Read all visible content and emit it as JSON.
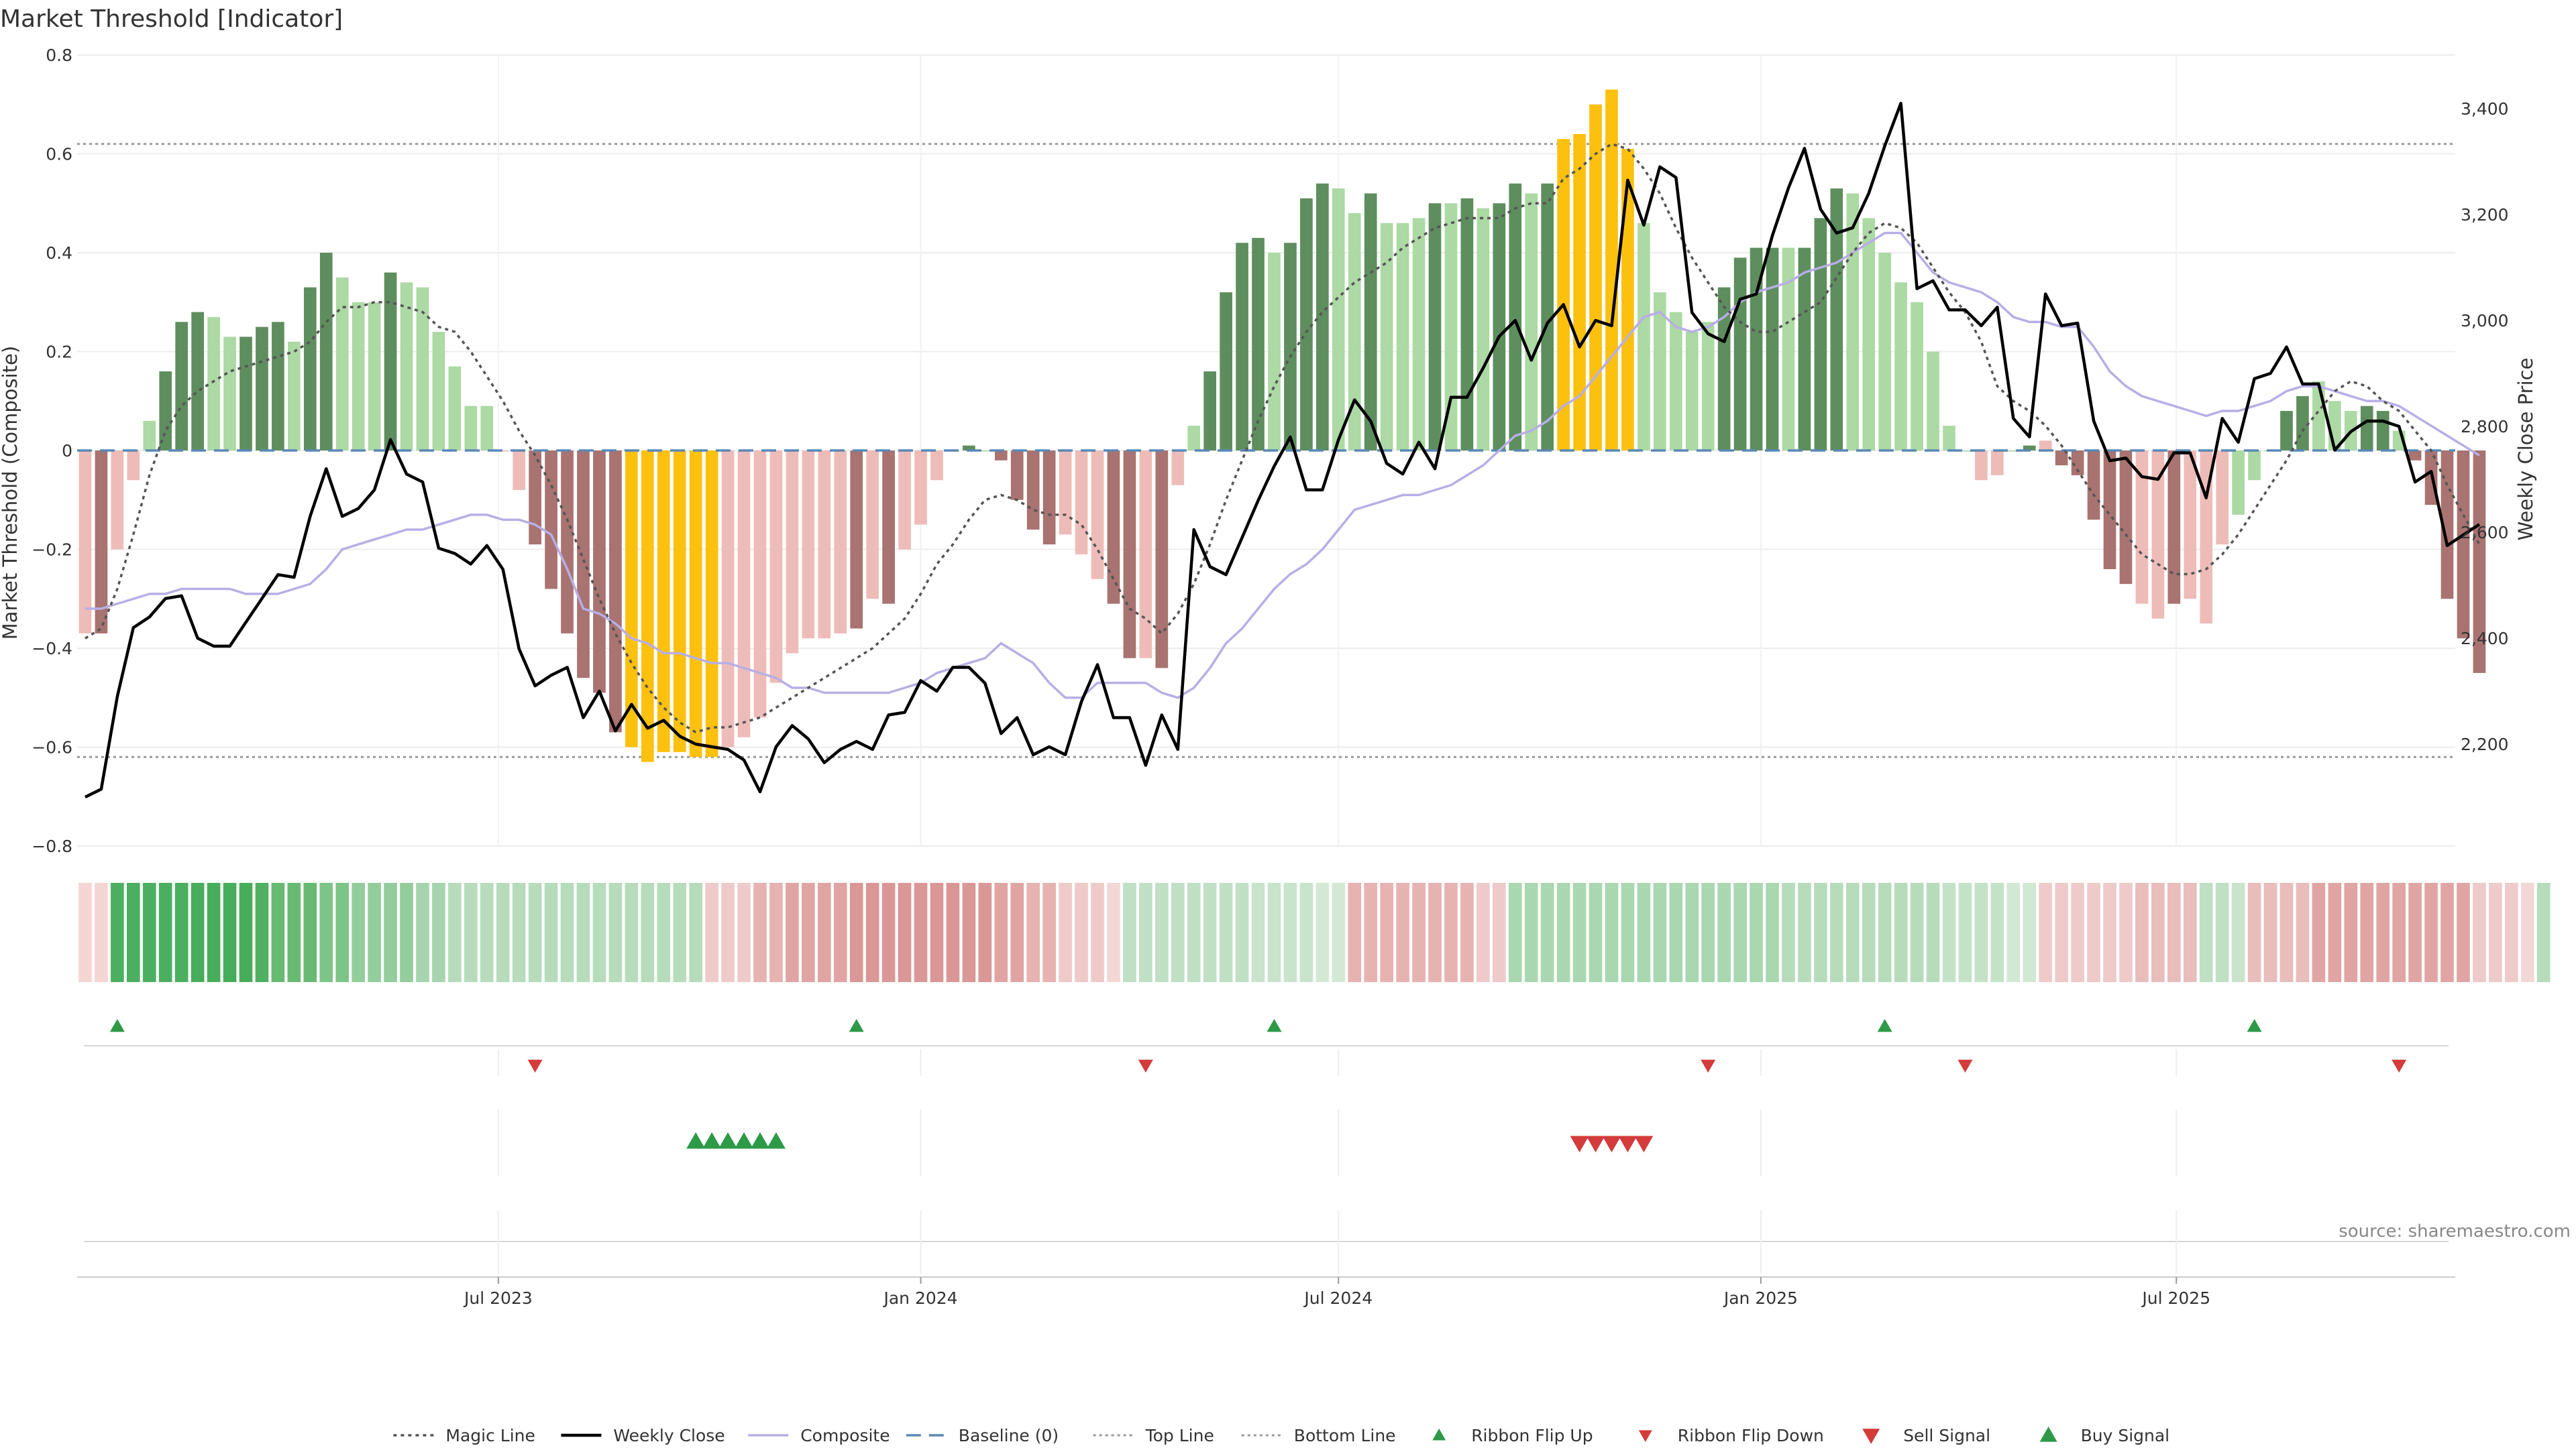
{
  "title": "Market Threshold [Indicator]",
  "source": "source: sharemaestro.com",
  "colors": {
    "dark_green": "#5e8e5e",
    "light_green": "#acd9a4",
    "dark_red": "#a87370",
    "light_red": "#eebcb8",
    "gold": "#fcc10f",
    "weekly_close": "#000000",
    "composite": "#b8aee6",
    "magic_line": "#555555",
    "baseline": "#5a88b5",
    "threshold_lines": "#999999",
    "signal_up": "#2e9a47",
    "signal_down": "#d43b3b"
  },
  "chart_data": {
    "type": "bar",
    "weeks": [
      "2023-01-02",
      "2023-01-09",
      "2023-01-16",
      "2023-01-23",
      "2023-01-30",
      "2023-02-06",
      "2023-02-13",
      "2023-02-20",
      "2023-02-27",
      "2023-03-06",
      "2023-03-13",
      "2023-03-20",
      "2023-03-27",
      "2023-04-03",
      "2023-04-10",
      "2023-04-17",
      "2023-04-24",
      "2023-05-01",
      "2023-05-08",
      "2023-05-15",
      "2023-05-22",
      "2023-05-29",
      "2023-06-05",
      "2023-06-12",
      "2023-06-19",
      "2023-06-26",
      "2023-07-03",
      "2023-07-10",
      "2023-07-17",
      "2023-07-24",
      "2023-07-31",
      "2023-08-07",
      "2023-08-14",
      "2023-08-21",
      "2023-08-28",
      "2023-09-04",
      "2023-09-11",
      "2023-09-18",
      "2023-09-25",
      "2023-10-02",
      "2023-10-09",
      "2023-10-16",
      "2023-10-23",
      "2023-10-30",
      "2023-11-06",
      "2023-11-13",
      "2023-11-20",
      "2023-11-27",
      "2023-12-04",
      "2023-12-11",
      "2023-12-18",
      "2023-12-25",
      "2024-01-01",
      "2024-01-08",
      "2024-01-15",
      "2024-01-22",
      "2024-01-29",
      "2024-02-05",
      "2024-02-12",
      "2024-02-19",
      "2024-02-26",
      "2024-03-04",
      "2024-03-11",
      "2024-03-18",
      "2024-03-25",
      "2024-04-01",
      "2024-04-08",
      "2024-04-15",
      "2024-04-22",
      "2024-04-29",
      "2024-05-06",
      "2024-05-13",
      "2024-05-20",
      "2024-05-27",
      "2024-06-03",
      "2024-06-10",
      "2024-06-17",
      "2024-06-24",
      "2024-07-01",
      "2024-07-08",
      "2024-07-15",
      "2024-07-22",
      "2024-07-29",
      "2024-08-05",
      "2024-08-12",
      "2024-08-19",
      "2024-08-26",
      "2024-09-02",
      "2024-09-09",
      "2024-09-16",
      "2024-09-23",
      "2024-09-30",
      "2024-10-07",
      "2024-10-14",
      "2024-10-21",
      "2024-10-28",
      "2024-11-04",
      "2024-11-11",
      "2024-11-18",
      "2024-11-25",
      "2024-12-02",
      "2024-12-09",
      "2024-12-16",
      "2024-12-23",
      "2024-12-30",
      "2025-01-06",
      "2025-01-13",
      "2025-01-20",
      "2025-01-27",
      "2025-02-03",
      "2025-02-10",
      "2025-02-17",
      "2025-02-24",
      "2025-03-03",
      "2025-03-10",
      "2025-03-17",
      "2025-03-24",
      "2025-03-31",
      "2025-04-07",
      "2025-04-14",
      "2025-04-21",
      "2025-04-28",
      "2025-05-05",
      "2025-05-12",
      "2025-05-19",
      "2025-05-26",
      "2025-06-02",
      "2025-06-09",
      "2025-06-16",
      "2025-06-23",
      "2025-06-30",
      "2025-07-07",
      "2025-07-14",
      "2025-07-21",
      "2025-07-28",
      "2025-08-04",
      "2025-08-11",
      "2025-08-18",
      "2025-08-25",
      "2025-09-01",
      "2025-09-08",
      "2025-09-15",
      "2025-09-22",
      "2025-09-29",
      "2025-10-06",
      "2025-10-13",
      "2025-10-20",
      "2025-10-27"
    ],
    "composite_bars": [
      -0.37,
      -0.37,
      -0.2,
      -0.06,
      0.06,
      0.16,
      0.26,
      0.28,
      0.27,
      0.23,
      0.23,
      0.25,
      0.26,
      0.22,
      0.33,
      0.4,
      0.35,
      0.3,
      0.3,
      0.36,
      0.34,
      0.33,
      0.24,
      0.17,
      0.09,
      0.09,
      0,
      -0.08,
      -0.19,
      -0.28,
      -0.37,
      -0.46,
      -0.49,
      -0.57,
      -0.6,
      -0.63,
      -0.61,
      -0.61,
      -0.62,
      -0.62,
      -0.6,
      -0.58,
      -0.54,
      -0.47,
      -0.41,
      -0.38,
      -0.38,
      -0.37,
      -0.36,
      -0.3,
      -0.31,
      -0.2,
      -0.15,
      -0.06,
      0,
      0.01,
      0,
      -0.02,
      -0.1,
      -0.16,
      -0.19,
      -0.17,
      -0.21,
      -0.26,
      -0.31,
      -0.42,
      -0.42,
      -0.44,
      -0.07,
      0.05,
      0.16,
      0.32,
      0.42,
      0.43,
      0.4,
      0.42,
      0.51,
      0.54,
      0.53,
      0.48,
      0.52,
      0.46,
      0.46,
      0.47,
      0.5,
      0.5,
      0.51,
      0.49,
      0.5,
      0.54,
      0.52,
      0.54,
      0.63,
      0.64,
      0.7,
      0.73,
      0.61,
      0.46,
      0.32,
      0.28,
      0.24,
      0.26,
      0.33,
      0.39,
      0.41,
      0.41,
      0.41,
      0.41,
      0.47,
      0.53,
      0.52,
      0.47,
      0.4,
      0.34,
      0.3,
      0.2,
      0.05,
      0,
      -0.06,
      -0.05,
      0,
      0.01,
      0.02,
      -0.03,
      -0.05,
      -0.14,
      -0.24,
      -0.27,
      -0.31,
      -0.34,
      -0.31,
      -0.3,
      -0.35,
      -0.19,
      -0.13,
      -0.06,
      0,
      0.08,
      0.11,
      0.14,
      0.1,
      0.08,
      0.09,
      0.08,
      0.04,
      -0.02,
      -0.11,
      -0.3,
      -0.38,
      -0.45
    ],
    "bar_colors": [
      "light_red",
      "dark_red",
      "light_red",
      "light_red",
      "light_green",
      "dark_green",
      "dark_green",
      "dark_green",
      "light_green",
      "light_green",
      "dark_green",
      "dark_green",
      "dark_green",
      "light_green",
      "dark_green",
      "dark_green",
      "light_green",
      "light_green",
      "light_green",
      "dark_green",
      "light_green",
      "light_green",
      "light_green",
      "light_green",
      "light_green",
      "light_green",
      "light_red",
      "light_red",
      "dark_red",
      "dark_red",
      "dark_red",
      "dark_red",
      "dark_red",
      "dark_red",
      "gold",
      "gold",
      "gold",
      "gold",
      "gold",
      "gold",
      "light_red",
      "light_red",
      "light_red",
      "light_red",
      "light_red",
      "light_red",
      "light_red",
      "light_red",
      "dark_red",
      "light_red",
      "dark_red",
      "light_red",
      "light_red",
      "light_red",
      "light_green",
      "dark_green",
      "light_green",
      "dark_red",
      "dark_red",
      "dark_red",
      "dark_red",
      "light_red",
      "light_red",
      "light_red",
      "dark_red",
      "dark_red",
      "light_red",
      "dark_red",
      "light_red",
      "light_green",
      "dark_green",
      "dark_green",
      "dark_green",
      "dark_green",
      "light_green",
      "dark_green",
      "dark_green",
      "dark_green",
      "light_green",
      "light_green",
      "dark_green",
      "light_green",
      "light_green",
      "light_green",
      "dark_green",
      "light_green",
      "dark_green",
      "light_green",
      "dark_green",
      "dark_green",
      "light_green",
      "dark_green",
      "gold",
      "gold",
      "gold",
      "gold",
      "gold",
      "light_green",
      "light_green",
      "light_green",
      "light_green",
      "light_green",
      "dark_green",
      "dark_green",
      "dark_green",
      "dark_green",
      "light_green",
      "dark_green",
      "dark_green",
      "dark_green",
      "light_green",
      "light_green",
      "light_green",
      "light_green",
      "light_green",
      "light_green",
      "light_green",
      "light_green",
      "light_red",
      "light_red",
      "light_green",
      "dark_green",
      "light_red",
      "dark_red",
      "dark_red",
      "dark_red",
      "dark_red",
      "dark_red",
      "light_red",
      "light_red",
      "dark_red",
      "light_red",
      "light_red",
      "light_red",
      "light_green",
      "light_green",
      "light_green",
      "dark_green",
      "dark_green",
      "light_green",
      "light_green",
      "light_green",
      "dark_green",
      "dark_green",
      "light_green",
      "dark_red",
      "dark_red",
      "dark_red",
      "dark_red",
      "dark_red"
    ],
    "weekly_close": [
      2100,
      2115,
      2290,
      2420,
      2440,
      2475,
      2480,
      2400,
      2385,
      2385,
      2430,
      2475,
      2520,
      2515,
      2630,
      2720,
      2630,
      2645,
      2680,
      2775,
      2710,
      2695,
      2570,
      2560,
      2540,
      2575,
      2530,
      2380,
      2310,
      2330,
      2345,
      2250,
      2300,
      2225,
      2275,
      2230,
      2245,
      2215,
      2200,
      2195,
      2190,
      2170,
      2110,
      2195,
      2235,
      2210,
      2165,
      2190,
      2205,
      2190,
      2255,
      2260,
      2320,
      2300,
      2345,
      2345,
      2315,
      2220,
      2250,
      2180,
      2195,
      2180,
      2280,
      2350,
      2250,
      2250,
      2160,
      2255,
      2190,
      2605,
      2535,
      2520,
      2590,
      2660,
      2725,
      2780,
      2680,
      2680,
      2775,
      2850,
      2810,
      2730,
      2710,
      2770,
      2720,
      2855,
      2855,
      2910,
      2970,
      3000,
      2925,
      2995,
      3030,
      2950,
      3000,
      2990,
      3265,
      3180,
      3290,
      3270,
      3015,
      2975,
      2960,
      3040,
      3050,
      3160,
      3250,
      3325,
      3210,
      3165,
      3175,
      3240,
      3330,
      3410,
      3060,
      3075,
      3020,
      3020,
      2990,
      3025,
      2815,
      2780,
      3050,
      2990,
      2995,
      2810,
      2735,
      2740,
      2705,
      2700,
      2750,
      2750,
      2665,
      2815,
      2770,
      2890,
      2900,
      2950,
      2880,
      2880,
      2755,
      2790,
      2810,
      2810,
      2800,
      2695,
      2715,
      2575,
      2595,
      2615
    ],
    "composite_line": [
      -0.32,
      -0.32,
      -0.31,
      -0.3,
      -0.29,
      -0.29,
      -0.28,
      -0.28,
      -0.28,
      -0.28,
      -0.29,
      -0.29,
      -0.29,
      -0.28,
      -0.27,
      -0.24,
      -0.2,
      -0.19,
      -0.18,
      -0.17,
      -0.16,
      -0.16,
      -0.15,
      -0.14,
      -0.13,
      -0.13,
      -0.14,
      -0.14,
      -0.15,
      -0.17,
      -0.24,
      -0.32,
      -0.33,
      -0.35,
      -0.38,
      -0.39,
      -0.41,
      -0.41,
      -0.42,
      -0.43,
      -0.43,
      -0.44,
      -0.45,
      -0.46,
      -0.48,
      -0.48,
      -0.49,
      -0.49,
      -0.49,
      -0.49,
      -0.49,
      -0.48,
      -0.47,
      -0.45,
      -0.44,
      -0.43,
      -0.42,
      -0.39,
      -0.41,
      -0.43,
      -0.47,
      -0.5,
      -0.5,
      -0.47,
      -0.47,
      -0.47,
      -0.47,
      -0.49,
      -0.5,
      -0.48,
      -0.44,
      -0.39,
      -0.36,
      -0.32,
      -0.28,
      -0.25,
      -0.23,
      -0.2,
      -0.16,
      -0.12,
      -0.11,
      -0.1,
      -0.09,
      -0.09,
      -0.08,
      -0.07,
      -0.05,
      -0.03,
      0,
      0.03,
      0.04,
      0.06,
      0.09,
      0.11,
      0.15,
      0.19,
      0.23,
      0.27,
      0.28,
      0.25,
      0.24,
      0.25,
      0.27,
      0.3,
      0.32,
      0.33,
      0.34,
      0.36,
      0.37,
      0.38,
      0.4,
      0.42,
      0.44,
      0.44,
      0.4,
      0.36,
      0.34,
      0.33,
      0.32,
      0.3,
      0.27,
      0.26,
      0.26,
      0.25,
      0.25,
      0.21,
      0.16,
      0.13,
      0.11,
      0.1,
      0.09,
      0.08,
      0.07,
      0.08,
      0.08,
      0.09,
      0.1,
      0.12,
      0.13,
      0.13,
      0.12,
      0.11,
      0.1,
      0.1,
      0.09,
      0.07,
      0.05,
      0.03,
      0.01,
      -0.01
    ],
    "magic_line": [
      -0.38,
      -0.36,
      -0.28,
      -0.17,
      -0.05,
      0.04,
      0.09,
      0.12,
      0.14,
      0.16,
      0.17,
      0.18,
      0.19,
      0.2,
      0.22,
      0.26,
      0.29,
      0.29,
      0.3,
      0.3,
      0.29,
      0.28,
      0.25,
      0.24,
      0.2,
      0.15,
      0.1,
      0.04,
      -0.01,
      -0.07,
      -0.14,
      -0.22,
      -0.3,
      -0.37,
      -0.43,
      -0.48,
      -0.52,
      -0.55,
      -0.57,
      -0.56,
      -0.56,
      -0.55,
      -0.54,
      -0.52,
      -0.5,
      -0.48,
      -0.46,
      -0.44,
      -0.42,
      -0.4,
      -0.37,
      -0.34,
      -0.29,
      -0.23,
      -0.19,
      -0.14,
      -0.1,
      -0.09,
      -0.1,
      -0.12,
      -0.13,
      -0.13,
      -0.15,
      -0.2,
      -0.26,
      -0.32,
      -0.34,
      -0.37,
      -0.33,
      -0.27,
      -0.19,
      -0.1,
      -0.02,
      0.06,
      0.13,
      0.19,
      0.24,
      0.28,
      0.31,
      0.34,
      0.36,
      0.38,
      0.41,
      0.43,
      0.45,
      0.46,
      0.47,
      0.47,
      0.47,
      0.49,
      0.5,
      0.5,
      0.55,
      0.57,
      0.6,
      0.62,
      0.61,
      0.57,
      0.52,
      0.45,
      0.39,
      0.34,
      0.29,
      0.26,
      0.24,
      0.24,
      0.26,
      0.28,
      0.3,
      0.35,
      0.4,
      0.44,
      0.46,
      0.45,
      0.42,
      0.37,
      0.32,
      0.28,
      0.22,
      0.13,
      0.1,
      0.08,
      0.05,
      0.01,
      -0.04,
      -0.09,
      -0.13,
      -0.17,
      -0.21,
      -0.23,
      -0.25,
      -0.25,
      -0.24,
      -0.21,
      -0.17,
      -0.12,
      -0.07,
      -0.02,
      0.04,
      0.08,
      0.12,
      0.14,
      0.13,
      0.1,
      0.08,
      0.04,
      0,
      -0.07,
      -0.13,
      -0.19
    ],
    "ribbon_colors": [
      "#f5d5d3",
      "#f5d5d3",
      "#4caf5f",
      "#4caf5f",
      "#4caf5f",
      "#4caf5f",
      "#4caf5f",
      "#47ad5b",
      "#47ad5b",
      "#47ad5b",
      "#47ad5b",
      "#4eb060",
      "#68ba73",
      "#68ba73",
      "#68ba73",
      "#7cc488",
      "#7cc488",
      "#93cd9c",
      "#93cd9c",
      "#93cd9c",
      "#93cd9c",
      "#a6d5ad",
      "#a6d5ad",
      "#b6dcbb",
      "#b6dcbb",
      "#b6dcbb",
      "#b6dcbb",
      "#b6dcbb",
      "#b6dcbb",
      "#b6dcbb",
      "#b6dcbb",
      "#b6dcbb",
      "#b6dcbb",
      "#b6dcbb",
      "#b6dcbb",
      "#b6dcbb",
      "#b6dcbb",
      "#b6dcbb",
      "#b6dcbb",
      "#eecaca",
      "#eecaca",
      "#eecaca",
      "#e6b3b1",
      "#e6b3b1",
      "#e0a5a3",
      "#e0a5a3",
      "#e0a5a3",
      "#e0a5a3",
      "#d99795",
      "#d99795",
      "#d99795",
      "#d99795",
      "#d99795",
      "#d99795",
      "#d99795",
      "#d99795",
      "#d99795",
      "#e0a5a3",
      "#e0a5a3",
      "#e6b3b1",
      "#e6b3b1",
      "#eecaca",
      "#eecaca",
      "#eecaca",
      "#f2d7d6",
      "#bfe0c4",
      "#bfe0c4",
      "#bfe0c4",
      "#bfe0c4",
      "#bfe0c4",
      "#bfe0c4",
      "#bfe0c4",
      "#bfe0c4",
      "#c8e4cc",
      "#c8e4cc",
      "#c8e4cc",
      "#c8e4cc",
      "#d3e9d5",
      "#d3e9d5",
      "#e6b3b1",
      "#e6b3b1",
      "#e6b3b1",
      "#e6b3b1",
      "#e6b3b1",
      "#e6b3b1",
      "#e6b3b1",
      "#e6b3b1",
      "#eecaca",
      "#eecaca",
      "#a9d7b0",
      "#a9d7b0",
      "#a9d7b0",
      "#a9d7b0",
      "#a9d7b0",
      "#a9d7b0",
      "#a9d7b0",
      "#a9d7b0",
      "#a9d7b0",
      "#a9d7b0",
      "#a9d7b0",
      "#a9d7b0",
      "#a9d7b0",
      "#a9d7b0",
      "#a9d7b0",
      "#a9d7b0",
      "#a9d7b0",
      "#b6dcbb",
      "#b6dcbb",
      "#b6dcbb",
      "#b6dcbb",
      "#b6dcbb",
      "#b6dcbb",
      "#b6dcbb",
      "#b6dcbb",
      "#b6dcbb",
      "#b6dcbb",
      "#c3e2c7",
      "#c3e2c7",
      "#c3e2c7",
      "#c3e2c7",
      "#d1e8d4",
      "#d1e8d4",
      "#eecaca",
      "#eecaca",
      "#eecaca",
      "#eecaca",
      "#eecaca",
      "#eecaca",
      "#e8bdbb",
      "#e8bdbb",
      "#e8bdbb",
      "#e8bdbb",
      "#bfe0c4",
      "#bfe0c4",
      "#c8e4cc",
      "#e8bdbb",
      "#e8bdbb",
      "#e8bdbb",
      "#e8bdbb",
      "#e0a5a3",
      "#e0a5a3",
      "#e0a5a3",
      "#e0a5a3",
      "#e0a5a3",
      "#e0a5a3",
      "#e0a5a3",
      "#e0a5a3",
      "#e0a5a3",
      "#e0a5a3",
      "#eecaca",
      "#eecaca",
      "#eecaca",
      "#f2d7d6",
      "#b6dcbb"
    ],
    "ribbon_flip_up": [
      "2023-01-16",
      "2023-12-04",
      "2024-06-03",
      "2025-02-24",
      "2025-08-04"
    ],
    "ribbon_flip_down": [
      "2023-07-17",
      "2024-04-08",
      "2024-12-09",
      "2025-03-31",
      "2025-10-06"
    ],
    "buy_signals": [
      "2023-09-25",
      "2023-10-02",
      "2023-10-09",
      "2023-10-16",
      "2023-10-23",
      "2023-10-30"
    ],
    "sell_signals": [
      "2024-10-14",
      "2024-10-21",
      "2024-10-28",
      "2024-11-04",
      "2024-11-11"
    ],
    "left_axis": {
      "label": "Market Threshold (Composite)",
      "ylim": [
        -0.8,
        0.8
      ],
      "ticks": [
        "0.8",
        "0.6",
        "0.4",
        "0.2",
        "0",
        "−0.2",
        "−0.4",
        "−0.6",
        "−0.8"
      ],
      "tick_values": [
        0.8,
        0.6,
        0.4,
        0.2,
        0,
        -0.2,
        -0.4,
        -0.6,
        -0.8
      ]
    },
    "right_axis": {
      "label": "Weekly Close Price",
      "ylim": [
        2000,
        3500
      ],
      "ticks": [
        "3,400",
        "3,200",
        "3,000",
        "2,800",
        "2,600",
        "2,400",
        "2,200"
      ],
      "tick_values": [
        3400,
        3200,
        3000,
        2800,
        2600,
        2400,
        2200
      ]
    },
    "x_ticks": [
      {
        "label": "Jul 2023",
        "date": "2023-07-01"
      },
      {
        "label": "Jan 2024",
        "date": "2024-01-01"
      },
      {
        "label": "Jul 2024",
        "date": "2024-07-01"
      },
      {
        "label": "Jan 2025",
        "date": "2025-01-01"
      },
      {
        "label": "Jul 2025",
        "date": "2025-07-01"
      }
    ],
    "top_line": 0.62,
    "bottom_line": -0.62,
    "baseline": 0,
    "grid": true,
    "legend_position": "bottom",
    "legend": [
      {
        "key": "magic",
        "label": "Magic Line"
      },
      {
        "key": "close",
        "label": "Weekly Close"
      },
      {
        "key": "composite",
        "label": "Composite"
      },
      {
        "key": "baseline",
        "label": "Baseline (0)"
      },
      {
        "key": "top",
        "label": "Top Line"
      },
      {
        "key": "bottom",
        "label": "Bottom Line"
      },
      {
        "key": "flip_up",
        "label": "Ribbon Flip Up"
      },
      {
        "key": "flip_down",
        "label": "Ribbon Flip Down"
      },
      {
        "key": "sell",
        "label": "Sell Signal"
      },
      {
        "key": "buy",
        "label": "Buy Signal"
      }
    ]
  }
}
